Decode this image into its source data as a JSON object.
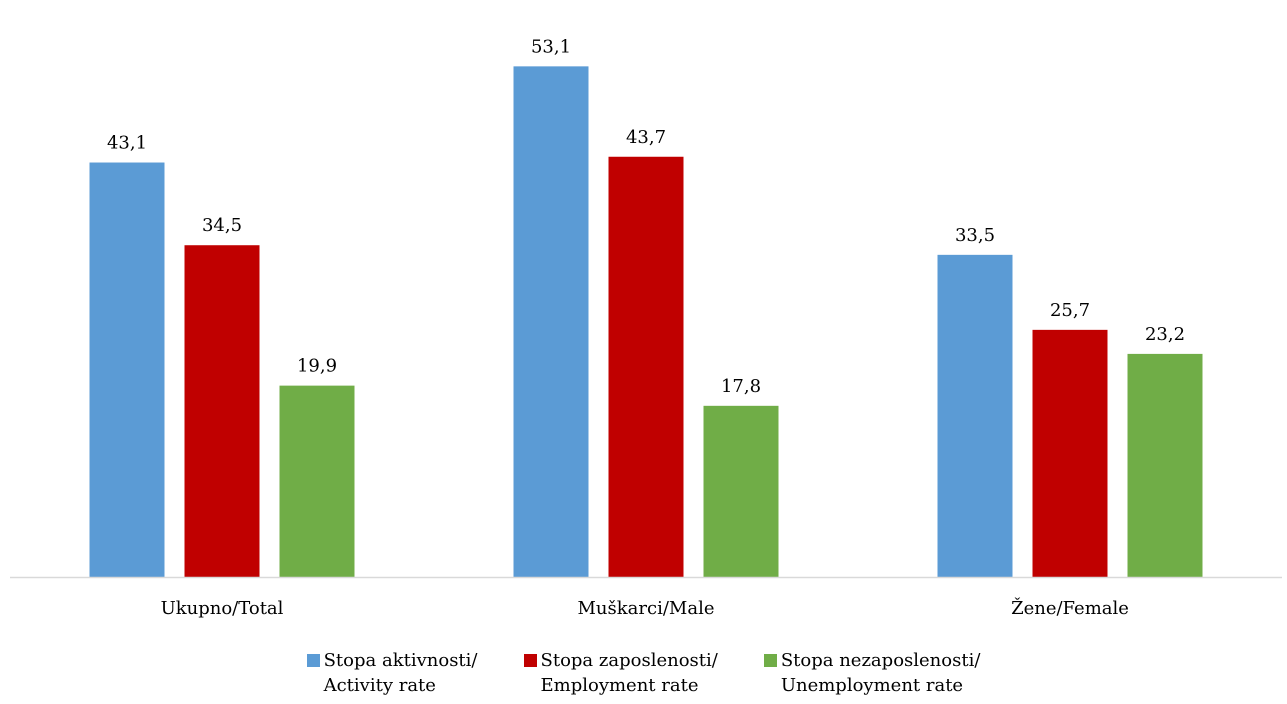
{
  "chart_data": {
    "type": "bar",
    "title": "",
    "xlabel": "",
    "ylabel": "",
    "categories": [
      "Ukupno/Total",
      "Muškarci/Male",
      "Žene/Female"
    ],
    "series": [
      {
        "name": "Stopa aktivnosti/ Activity rate",
        "name_lines": [
          "Stopa aktivnosti/",
          "Activity rate"
        ],
        "color": "#5b9bd5",
        "values": [
          43.1,
          53.1,
          33.5
        ],
        "labels": [
          "43,1",
          "53,1",
          "33,5"
        ]
      },
      {
        "name": "Stopa zaposlenosti/ Employment rate",
        "name_lines": [
          "Stopa zaposlenosti/",
          "Employment rate"
        ],
        "color": "#c00000",
        "values": [
          34.5,
          43.7,
          25.7
        ],
        "labels": [
          "34,5",
          "43,7",
          "25,7"
        ]
      },
      {
        "name": "Stopa nezaposlenosti/ Unemployment rate",
        "name_lines": [
          "Stopa nezaposlenosti/",
          "Unemployment rate"
        ],
        "color": "#70ad47",
        "values": [
          19.9,
          17.8,
          23.2
        ],
        "labels": [
          "19,9",
          "17,8",
          "23,2"
        ]
      }
    ],
    "ylim": [
      0,
      60
    ],
    "grid": false,
    "legend_position": "bottom",
    "axis_color": "#d9d9d9"
  }
}
